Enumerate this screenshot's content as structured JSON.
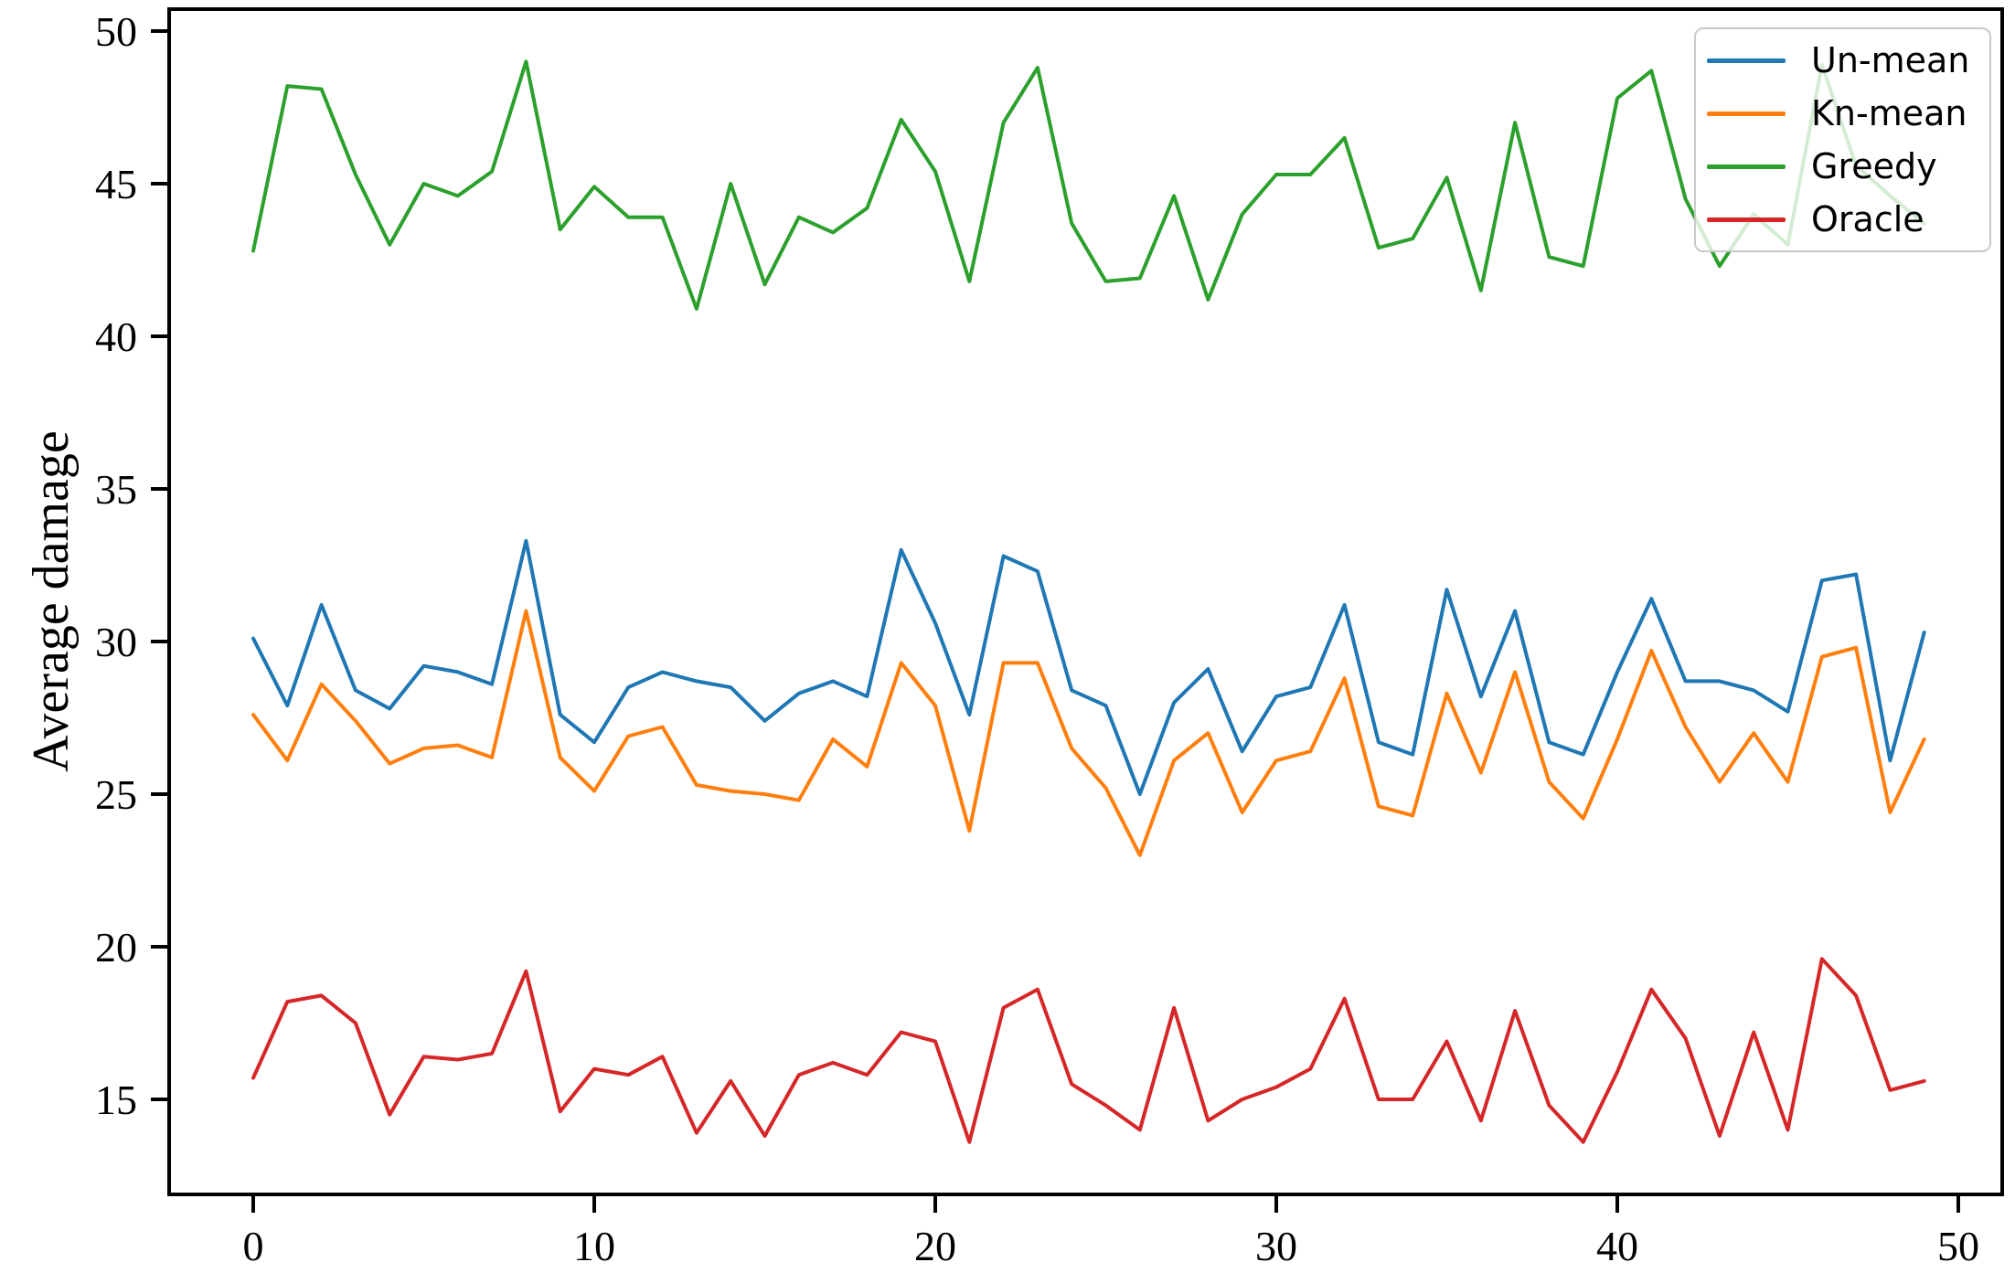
{
  "figure": {
    "background": "#ffffff",
    "ylabel": "Average damage"
  },
  "legend": {
    "entries": [
      {
        "label": "Un-mean",
        "color": "#1f77b4"
      },
      {
        "label": "Kn-mean",
        "color": "#ff7f0e"
      },
      {
        "label": "Greedy",
        "color": "#2ca02c"
      },
      {
        "label": "Oracle",
        "color": "#d62728"
      }
    ]
  },
  "chart_data": {
    "type": "line",
    "title": "",
    "xlabel": "",
    "ylabel": "Average damage",
    "grid": false,
    "legend_position": "upper right",
    "xlim": [
      -2.466,
      51.287
    ],
    "ylim": [
      11.885,
      50.719
    ],
    "xticks": [
      0,
      10,
      20,
      30,
      40,
      50
    ],
    "xtick_labels": [
      "0",
      "10",
      "20",
      "30",
      "40",
      "50"
    ],
    "yticks": [
      15,
      20,
      25,
      30,
      35,
      40,
      45,
      50
    ],
    "ytick_labels": [
      "15",
      "20",
      "25",
      "30",
      "35",
      "40",
      "45",
      "50"
    ],
    "x": [
      0,
      1,
      2,
      3,
      4,
      5,
      6,
      7,
      8,
      9,
      10,
      11,
      12,
      13,
      14,
      15,
      16,
      17,
      18,
      19,
      20,
      21,
      22,
      23,
      24,
      25,
      26,
      27,
      28,
      29,
      30,
      31,
      32,
      33,
      34,
      35,
      36,
      37,
      38,
      39,
      40,
      41,
      42,
      43,
      44,
      45,
      46,
      47,
      48,
      49
    ],
    "series": [
      {
        "name": "Un-mean",
        "color": "#1f77b4",
        "values": [
          30.1,
          27.9,
          31.2,
          28.4,
          27.8,
          29.2,
          29.0,
          28.6,
          33.3,
          27.6,
          26.7,
          28.5,
          29.0,
          28.7,
          28.5,
          27.4,
          28.3,
          28.7,
          28.2,
          33.0,
          30.6,
          27.6,
          32.8,
          32.3,
          28.4,
          27.9,
          25.0,
          28.0,
          29.1,
          26.4,
          28.2,
          28.5,
          31.2,
          26.7,
          26.3,
          31.7,
          28.2,
          31.0,
          26.7,
          26.3,
          29.0,
          31.4,
          28.7,
          28.7,
          28.4,
          27.7,
          32.0,
          32.2,
          26.1,
          30.3
        ]
      },
      {
        "name": "Kn-mean",
        "color": "#ff7f0e",
        "values": [
          27.6,
          26.1,
          28.6,
          27.4,
          26.0,
          26.5,
          26.6,
          26.2,
          31.0,
          26.2,
          25.1,
          26.9,
          27.2,
          25.3,
          25.1,
          25.0,
          24.8,
          26.8,
          25.9,
          29.3,
          27.9,
          23.8,
          29.3,
          29.3,
          26.5,
          25.2,
          23.0,
          26.1,
          27.0,
          24.4,
          26.1,
          26.4,
          28.8,
          24.6,
          24.3,
          28.3,
          25.7,
          29.0,
          25.4,
          24.2,
          26.8,
          29.7,
          27.2,
          25.4,
          27.0,
          25.4,
          29.5,
          29.8,
          24.4,
          26.8
        ]
      },
      {
        "name": "Greedy",
        "color": "#2ca02c",
        "values": [
          42.8,
          48.2,
          48.1,
          45.3,
          43.0,
          45.0,
          44.6,
          45.4,
          49.0,
          43.5,
          44.9,
          43.9,
          43.9,
          40.9,
          45.0,
          41.7,
          43.9,
          43.4,
          44.2,
          47.1,
          45.4,
          41.8,
          47.0,
          48.8,
          43.7,
          41.8,
          41.9,
          44.6,
          41.2,
          44.0,
          45.3,
          45.3,
          46.5,
          42.9,
          43.2,
          45.2,
          41.5,
          47.0,
          42.6,
          42.3,
          47.8,
          48.7,
          44.5,
          42.3,
          44.0,
          43.0,
          48.9,
          45.6,
          44.6,
          43.7
        ]
      },
      {
        "name": "Oracle",
        "color": "#d62728",
        "values": [
          15.7,
          18.2,
          18.4,
          17.5,
          14.5,
          16.4,
          16.3,
          16.5,
          19.2,
          14.6,
          16.0,
          15.8,
          16.4,
          13.9,
          15.6,
          13.8,
          15.8,
          16.2,
          15.8,
          17.2,
          16.9,
          13.6,
          18.0,
          18.6,
          15.5,
          14.8,
          14.0,
          18.0,
          14.3,
          15.0,
          15.4,
          16.0,
          18.3,
          15.0,
          15.0,
          16.9,
          14.3,
          17.9,
          14.8,
          13.6,
          15.9,
          18.6,
          17.0,
          13.8,
          17.2,
          14.0,
          19.6,
          18.4,
          15.3,
          15.6
        ]
      }
    ]
  }
}
